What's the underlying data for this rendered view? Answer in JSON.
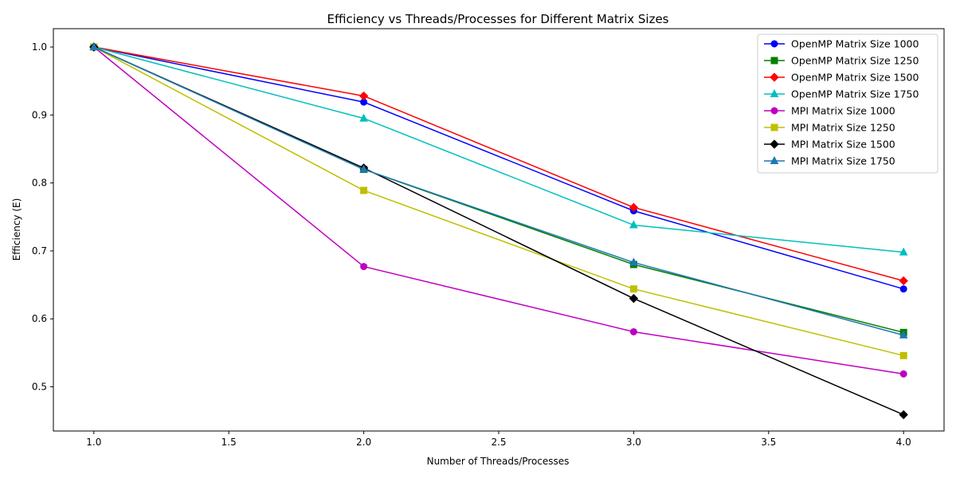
{
  "chart_data": {
    "type": "line",
    "title": "Efficiency vs Threads/Processes for Different Matrix Sizes",
    "xlabel": "Number of Threads/Processes",
    "ylabel": "Efficiency (E)",
    "x": [
      1,
      2,
      3,
      4
    ],
    "xlim": [
      0.85,
      4.15
    ],
    "ylim": [
      0.435,
      1.027
    ],
    "xticks": [
      "1.0",
      "1.5",
      "2.0",
      "2.5",
      "3.0",
      "3.5",
      "4.0"
    ],
    "yticks": [
      "0.5",
      "0.6",
      "0.7",
      "0.8",
      "0.9",
      "1.0"
    ],
    "grid": false,
    "legend_position": "upper-right",
    "series": [
      {
        "name": "OpenMP Matrix Size 1000",
        "color": "#0000ff",
        "marker": "circle",
        "values": [
          1.0,
          0.919,
          0.759,
          0.644
        ]
      },
      {
        "name": "OpenMP Matrix Size 1250",
        "color": "#008000",
        "marker": "square",
        "values": [
          1.0,
          0.82,
          0.68,
          0.58
        ]
      },
      {
        "name": "OpenMP Matrix Size 1500",
        "color": "#ff0000",
        "marker": "diamond",
        "values": [
          1.0,
          0.928,
          0.764,
          0.656
        ]
      },
      {
        "name": "OpenMP Matrix Size 1750",
        "color": "#00bfbf",
        "marker": "triangle",
        "values": [
          1.0,
          0.895,
          0.738,
          0.698
        ]
      },
      {
        "name": "MPI Matrix Size 1000",
        "color": "#bf00bf",
        "marker": "circle",
        "values": [
          1.0,
          0.677,
          0.581,
          0.519
        ]
      },
      {
        "name": "MPI Matrix Size 1250",
        "color": "#bfbf00",
        "marker": "square",
        "values": [
          1.0,
          0.789,
          0.644,
          0.546
        ]
      },
      {
        "name": "MPI Matrix Size 1500",
        "color": "#000000",
        "marker": "diamond",
        "values": [
          1.0,
          0.822,
          0.63,
          0.459
        ]
      },
      {
        "name": "MPI Matrix Size 1750",
        "color": "#1f77b4",
        "marker": "triangle",
        "values": [
          1.0,
          0.82,
          0.683,
          0.576
        ]
      }
    ]
  }
}
